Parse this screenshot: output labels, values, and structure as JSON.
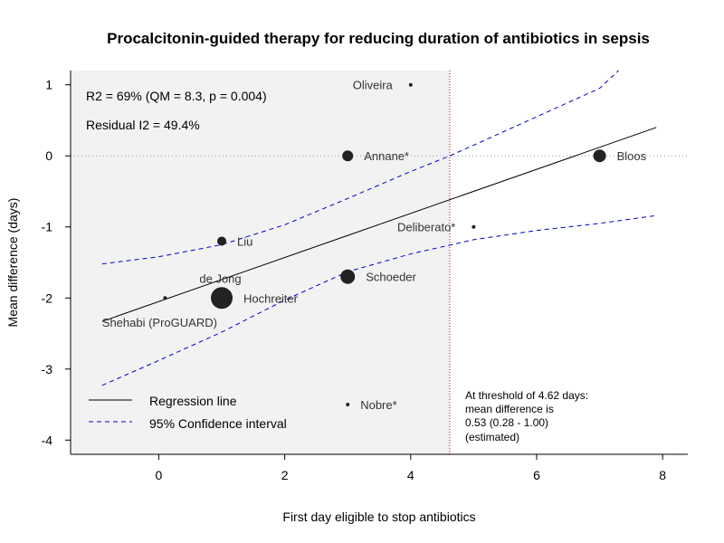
{
  "chart_data": {
    "type": "scatter",
    "title": "Procalcitonin-guided therapy for reducing duration of antibiotics in sepsis",
    "xlabel": "First day eligible to stop antibiotics",
    "ylabel": "Mean difference (days)",
    "xlim": [
      -1.4,
      8.4
    ],
    "ylim": [
      -4.2,
      1.2
    ],
    "x_ticks": [
      0,
      2,
      4,
      6,
      8
    ],
    "y_ticks": [
      1,
      0,
      -1,
      -2,
      -3,
      -4
    ],
    "grid": false,
    "shaded_region": {
      "from_x": -1.4,
      "to_x": 4.62,
      "color": "#f2f2f2"
    },
    "reference_line": {
      "y": 0,
      "style": "dotted",
      "color": "#999999"
    },
    "threshold_line": {
      "x": 4.62,
      "style": "dotted",
      "color": "#cc0000"
    },
    "stats": {
      "r2": "R2 = 69% (QM = 8.3, p = 0.004)",
      "i2": "Residual I2 = 49.4%"
    },
    "annotation": {
      "lines": [
        "At threshold of 4.62 days:",
        "mean difference is",
        "0.53 (0.28 - 1.00)",
        "(estimated)"
      ]
    },
    "legend": {
      "placement": "bottom-left",
      "entries": [
        {
          "label": "Regression line",
          "style": "solid",
          "color": "#000000"
        },
        {
          "label": "95% Confidence interval",
          "style": "dashed",
          "color": "#0000cc"
        }
      ]
    },
    "regression_line": {
      "x": [
        -0.9,
        7.9
      ],
      "y": [
        -2.33,
        0.4
      ],
      "color": "#000000"
    },
    "ci_upper": {
      "x": [
        -0.9,
        0,
        1,
        2,
        3,
        4,
        4.62,
        5,
        6,
        7,
        7.3
      ],
      "y": [
        -1.52,
        -1.42,
        -1.25,
        -0.97,
        -0.6,
        -0.22,
        0,
        0.15,
        0.55,
        0.95,
        1.2
      ],
      "color": "#0000cc"
    },
    "ci_lower": {
      "x": [
        -0.9,
        0,
        1,
        2,
        3,
        4,
        5,
        6,
        7,
        7.9
      ],
      "y": [
        -3.23,
        -2.88,
        -2.48,
        -2.03,
        -1.63,
        -1.38,
        -1.18,
        -1.05,
        -0.95,
        -0.84
      ],
      "color": "#0000cc"
    },
    "points": [
      {
        "label": "Oliveira",
        "x": 4,
        "y": 1,
        "size": 2,
        "label_side": "left"
      },
      {
        "label": "Annane*",
        "x": 3,
        "y": 0,
        "size": 6,
        "label_side": "right"
      },
      {
        "label": "Bloos",
        "x": 7,
        "y": 0,
        "size": 7,
        "label_side": "right"
      },
      {
        "label": "Deliberato*",
        "x": 5,
        "y": -1,
        "size": 2,
        "label_side": "left"
      },
      {
        "label": "Liu",
        "x": 1,
        "y": -1.2,
        "size": 5,
        "label_side": "right"
      },
      {
        "label": "Schoeder",
        "x": 3,
        "y": -1.7,
        "size": 8,
        "label_side": "right"
      },
      {
        "label": "de Jong",
        "x": 0.1,
        "y": -2,
        "size": 2,
        "label_side": "above-right"
      },
      {
        "label": "Hochreiter",
        "x": 1,
        "y": -2,
        "size": 12,
        "label_side": "right"
      },
      {
        "label": "Shehabi (ProGUARD)",
        "x": -0.9,
        "y": -2.33,
        "size": 0,
        "label_side": "right"
      },
      {
        "label": "Nobre*",
        "x": 3,
        "y": -3.5,
        "size": 2,
        "label_side": "right"
      }
    ]
  }
}
